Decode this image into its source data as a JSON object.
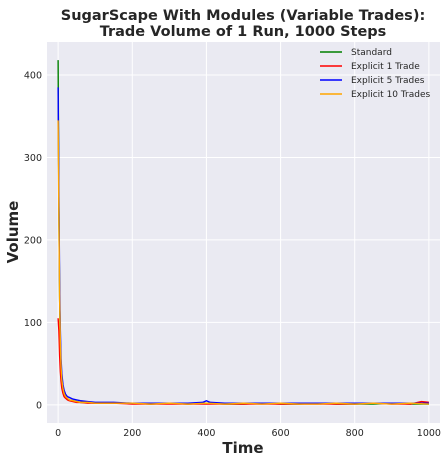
{
  "chart_data": {
    "type": "line",
    "title_line1": "SugarScape With Modules (Variable Trades):",
    "title_line2": "Trade Volume of 1 Run, 1000 Steps",
    "xlabel": "Time",
    "ylabel": "Volume",
    "xlim": [
      -30,
      1030
    ],
    "ylim": [
      -22,
      440
    ],
    "xticks": [
      0,
      200,
      400,
      600,
      800,
      1000
    ],
    "yticks": [
      0,
      100,
      200,
      300,
      400
    ],
    "grid": true,
    "legend_position": "top-right",
    "series": [
      {
        "name": "Standard",
        "color": "#008000",
        "points": [
          [
            0,
            418
          ],
          [
            2,
            240
          ],
          [
            4,
            130
          ],
          [
            6,
            72
          ],
          [
            8,
            45
          ],
          [
            10,
            30
          ],
          [
            13,
            20
          ],
          [
            16,
            14
          ],
          [
            20,
            10
          ],
          [
            25,
            7
          ],
          [
            30,
            6
          ],
          [
            40,
            5
          ],
          [
            50,
            4
          ],
          [
            60,
            3
          ],
          [
            80,
            3
          ],
          [
            100,
            2
          ],
          [
            150,
            2
          ],
          [
            200,
            2
          ],
          [
            250,
            1
          ],
          [
            300,
            2
          ],
          [
            350,
            1
          ],
          [
            400,
            2
          ],
          [
            450,
            1
          ],
          [
            500,
            1
          ],
          [
            550,
            2
          ],
          [
            600,
            1
          ],
          [
            650,
            1
          ],
          [
            700,
            2
          ],
          [
            750,
            1
          ],
          [
            800,
            1
          ],
          [
            850,
            1
          ],
          [
            900,
            2
          ],
          [
            950,
            1
          ],
          [
            1000,
            1
          ]
        ]
      },
      {
        "name": "Explicit 1 Trade",
        "color": "#ff0000",
        "points": [
          [
            0,
            105
          ],
          [
            2,
            90
          ],
          [
            4,
            60
          ],
          [
            6,
            40
          ],
          [
            8,
            28
          ],
          [
            10,
            20
          ],
          [
            13,
            14
          ],
          [
            16,
            10
          ],
          [
            20,
            8
          ],
          [
            25,
            6
          ],
          [
            30,
            5
          ],
          [
            40,
            4
          ],
          [
            50,
            3
          ],
          [
            60,
            3
          ],
          [
            80,
            2
          ],
          [
            100,
            2
          ],
          [
            150,
            2
          ],
          [
            200,
            1
          ],
          [
            250,
            1
          ],
          [
            300,
            1
          ],
          [
            350,
            1
          ],
          [
            400,
            1
          ],
          [
            450,
            1
          ],
          [
            500,
            1
          ],
          [
            550,
            1
          ],
          [
            600,
            1
          ],
          [
            650,
            1
          ],
          [
            700,
            1
          ],
          [
            750,
            1
          ],
          [
            800,
            1
          ],
          [
            850,
            2
          ],
          [
            900,
            1
          ],
          [
            950,
            1
          ],
          [
            980,
            4
          ],
          [
            1000,
            3
          ]
        ]
      },
      {
        "name": "Explicit 5 Trades",
        "color": "#0000ff",
        "points": [
          [
            0,
            385
          ],
          [
            2,
            260
          ],
          [
            4,
            150
          ],
          [
            6,
            90
          ],
          [
            8,
            55
          ],
          [
            10,
            38
          ],
          [
            13,
            25
          ],
          [
            16,
            18
          ],
          [
            20,
            13
          ],
          [
            25,
            10
          ],
          [
            30,
            9
          ],
          [
            40,
            7
          ],
          [
            50,
            6
          ],
          [
            60,
            5
          ],
          [
            80,
            4
          ],
          [
            100,
            3
          ],
          [
            150,
            3
          ],
          [
            200,
            2
          ],
          [
            250,
            2
          ],
          [
            300,
            2
          ],
          [
            350,
            2
          ],
          [
            390,
            3
          ],
          [
            400,
            5
          ],
          [
            410,
            3
          ],
          [
            450,
            2
          ],
          [
            500,
            2
          ],
          [
            550,
            2
          ],
          [
            600,
            2
          ],
          [
            650,
            2
          ],
          [
            700,
            2
          ],
          [
            750,
            2
          ],
          [
            800,
            2
          ],
          [
            850,
            2
          ],
          [
            900,
            2
          ],
          [
            950,
            2
          ],
          [
            1000,
            2
          ]
        ]
      },
      {
        "name": "Explicit 10 Trades",
        "color": "#ffa500",
        "points": [
          [
            0,
            345
          ],
          [
            2,
            230
          ],
          [
            4,
            130
          ],
          [
            6,
            75
          ],
          [
            8,
            45
          ],
          [
            10,
            30
          ],
          [
            13,
            20
          ],
          [
            16,
            14
          ],
          [
            20,
            10
          ],
          [
            25,
            8
          ],
          [
            30,
            6
          ],
          [
            40,
            5
          ],
          [
            50,
            4
          ],
          [
            60,
            3
          ],
          [
            80,
            3
          ],
          [
            100,
            2
          ],
          [
            150,
            2
          ],
          [
            200,
            2
          ],
          [
            250,
            1
          ],
          [
            300,
            2
          ],
          [
            350,
            1
          ],
          [
            400,
            2
          ],
          [
            450,
            1
          ],
          [
            500,
            2
          ],
          [
            550,
            1
          ],
          [
            600,
            2
          ],
          [
            650,
            1
          ],
          [
            700,
            1
          ],
          [
            750,
            2
          ],
          [
            800,
            1
          ],
          [
            850,
            2
          ],
          [
            900,
            1
          ],
          [
            950,
            2
          ],
          [
            1000,
            1
          ]
        ]
      }
    ]
  }
}
